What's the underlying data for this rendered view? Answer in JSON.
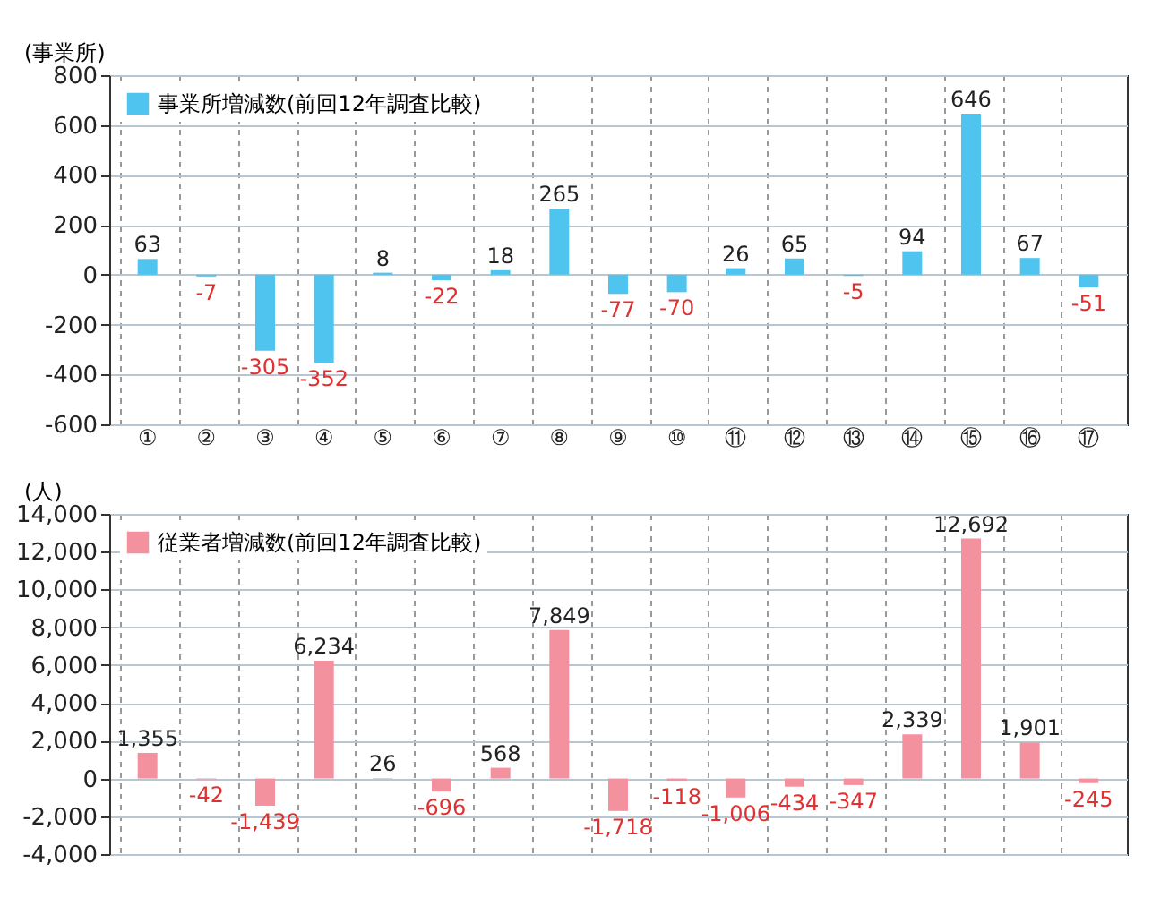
{
  "chart_data": [
    {
      "type": "bar",
      "ylabel": "(事業所)",
      "categories": [
        "①",
        "②",
        "③",
        "④",
        "⑤",
        "⑥",
        "⑦",
        "⑧",
        "⑨",
        "⑩",
        "⑪",
        "⑫",
        "⑬",
        "⑭",
        "⑮",
        "⑯",
        "⑰"
      ],
      "series": [
        {
          "name": "事業所増減数(前回12年調査比較)",
          "color": "#4fc4ef",
          "values": [
            63,
            -7,
            -305,
            -352,
            8,
            -22,
            18,
            265,
            -77,
            -70,
            26,
            65,
            -5,
            94,
            646,
            67,
            -51
          ],
          "value_labels": [
            "63",
            "-7",
            "-305",
            "-352",
            "8",
            "-22",
            "18",
            "265",
            "-77",
            "-70",
            "26",
            "65",
            "-5",
            "94",
            "646",
            "67",
            "-51"
          ]
        }
      ],
      "ylim": [
        -600,
        800
      ],
      "yticks": [
        -600,
        -400,
        -200,
        0,
        200,
        400,
        600,
        800
      ],
      "grid": true,
      "legend": "top left"
    },
    {
      "type": "bar",
      "ylabel": "(人)",
      "categories": [
        null,
        null,
        null,
        null,
        null,
        null,
        null,
        null,
        null,
        null,
        null,
        null,
        null,
        null,
        null,
        null,
        null
      ],
      "series": [
        {
          "name": "従業者増減数(前回12年調査比較)",
          "color": "#f4919f",
          "values": [
            1355,
            -42,
            -1439,
            6234,
            26,
            -696,
            568,
            7849,
            -1718,
            -118,
            -1006,
            -434,
            -347,
            2339,
            12692,
            1901,
            -245
          ],
          "value_labels": [
            "1,355",
            "-42",
            "-1,439",
            "6,234",
            "26",
            "-696",
            "568",
            "7,849",
            "-1,718",
            "-118",
            "-1,006",
            "-434",
            "-347",
            "2,339",
            "12,692",
            "1,901",
            "-245"
          ]
        }
      ],
      "ylim": [
        -4000,
        14000
      ],
      "yticks": [
        {
          "value": -4000,
          "label": "-4,000"
        },
        {
          "value": -2000,
          "label": "-2,000"
        },
        0,
        {
          "value": 2000,
          "label": "2,000"
        },
        {
          "value": 4000,
          "label": "4,000"
        },
        {
          "value": 6000,
          "label": "6,000"
        },
        {
          "value": 8000,
          "label": "8,000"
        },
        {
          "value": 10000,
          "label": "10,000"
        },
        {
          "value": 12000,
          "label": "12,000"
        },
        {
          "value": 14000,
          "label": "14,000"
        }
      ],
      "grid": true,
      "legend": "top left"
    }
  ]
}
